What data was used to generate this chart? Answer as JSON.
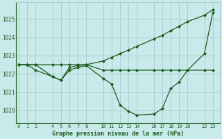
{
  "title": "Graphe pression niveau de la mer (hPa)",
  "bg_color": "#c8eaea",
  "grid_color": "#a8d0d0",
  "line_color": "#1e5c1e",
  "tick_label_color": "#1e5c1e",
  "ylim": [
    1019.3,
    1025.9
  ],
  "yticks": [
    1020,
    1021,
    1022,
    1023,
    1024,
    1025
  ],
  "xtick_labels": [
    "0",
    "1",
    "2",
    "4",
    "5",
    "6",
    "7",
    "8",
    "10",
    "11",
    "12",
    "13",
    "14",
    "16",
    "17",
    "18",
    "19",
    "20",
    "22",
    "23"
  ],
  "xtick_positions": [
    0,
    1,
    2,
    4,
    5,
    6,
    7,
    8,
    10,
    11,
    12,
    13,
    14,
    16,
    17,
    18,
    19,
    20,
    22,
    23
  ],
  "xlim": [
    -0.3,
    23.8
  ],
  "line1_x": [
    0,
    1,
    2,
    4,
    5,
    6,
    7,
    8,
    10,
    11,
    12,
    13,
    14,
    16,
    17,
    18,
    19,
    20,
    22,
    23
  ],
  "line1_y": [
    1022.5,
    1022.5,
    1022.5,
    1022.5,
    1022.5,
    1022.5,
    1022.5,
    1022.5,
    1022.2,
    1022.2,
    1022.2,
    1022.2,
    1022.2,
    1022.2,
    1022.2,
    1022.2,
    1022.2,
    1022.2,
    1022.2,
    1022.2
  ],
  "line2_x": [
    0,
    1,
    2,
    4,
    5,
    6,
    7,
    8,
    10,
    11,
    12,
    13,
    14,
    16,
    17,
    18,
    19,
    20,
    22,
    23
  ],
  "line2_y": [
    1022.5,
    1022.5,
    1022.2,
    1021.85,
    1021.65,
    1022.2,
    1022.35,
    1022.45,
    1021.75,
    1021.45,
    1020.3,
    1019.95,
    1019.75,
    1019.8,
    1020.1,
    1021.2,
    1021.55,
    1022.2,
    1023.1,
    1025.35
  ],
  "line3_x": [
    0,
    1,
    2,
    4,
    5,
    6,
    7,
    8,
    10,
    11,
    12,
    13,
    14,
    16,
    17,
    18,
    19,
    20,
    22,
    23
  ],
  "line3_y": [
    1022.5,
    1022.5,
    1022.5,
    1021.85,
    1021.65,
    1022.35,
    1022.45,
    1022.5,
    1022.7,
    1022.9,
    1023.1,
    1023.3,
    1023.5,
    1023.9,
    1024.1,
    1024.35,
    1024.6,
    1024.85,
    1025.2,
    1025.5
  ],
  "marker": "D",
  "markersize": 2.0,
  "linewidth": 0.9
}
